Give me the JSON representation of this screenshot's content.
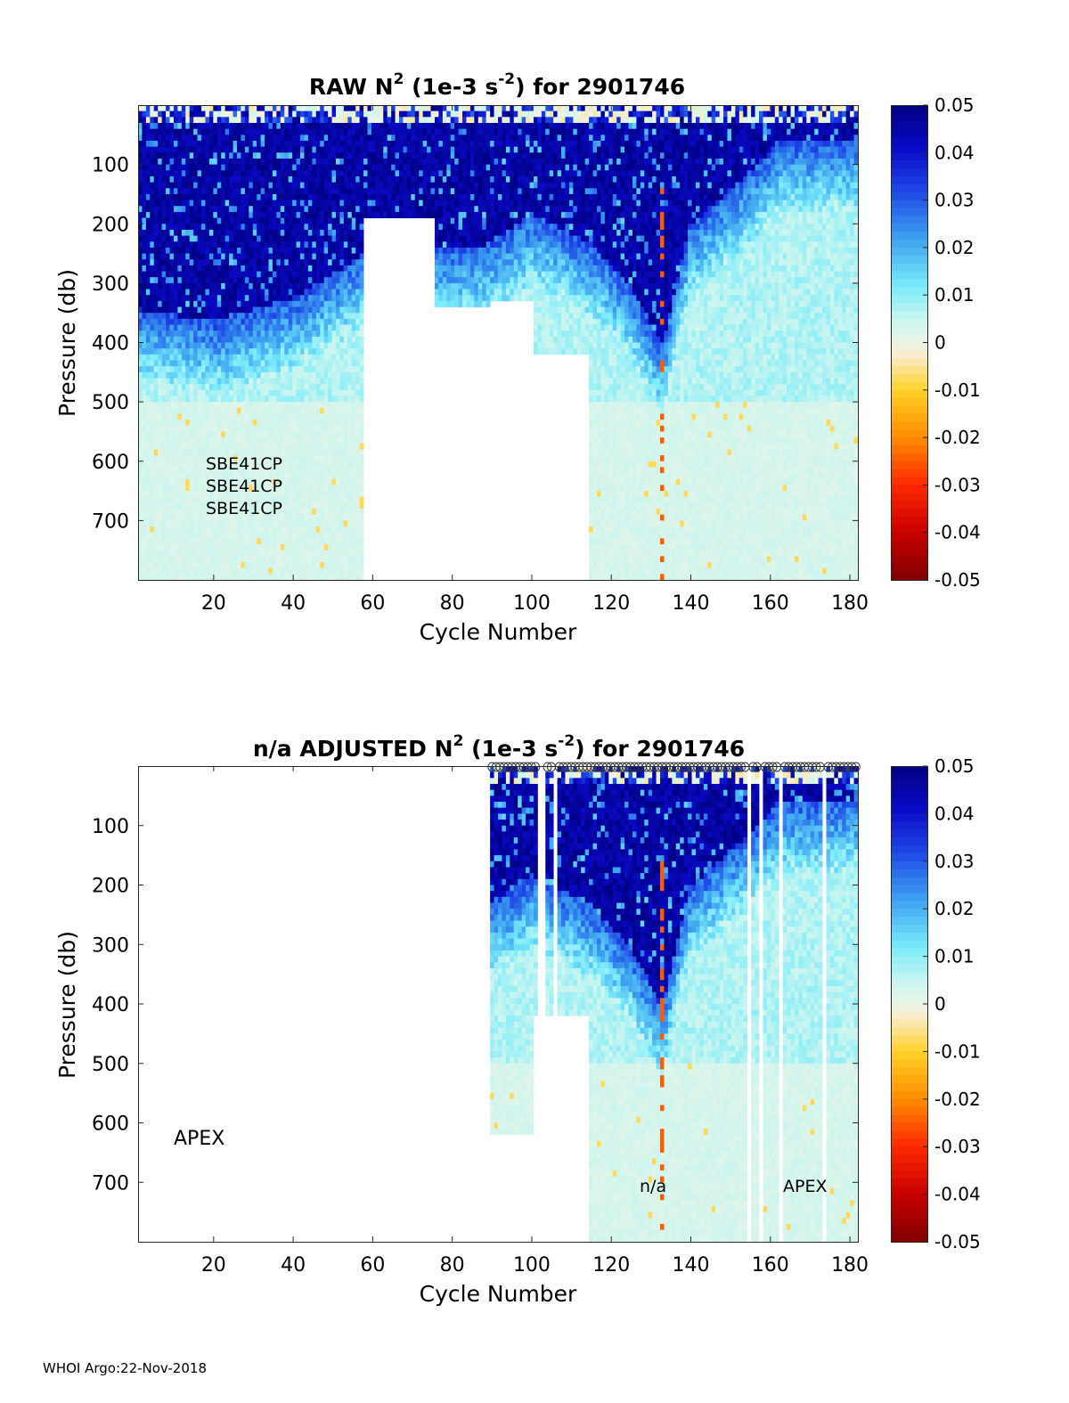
{
  "footer": "WHOI Argo:22-Nov-2018",
  "chart_data": [
    {
      "type": "heatmap",
      "title": {
        "pre": "RAW N",
        "sup": "2",
        "mid": " (1e-3 s",
        "sup2": "-2",
        "post": ") for 2901746"
      },
      "xlabel": "Cycle Number",
      "ylabel": "Pressure (db)",
      "xlim": [
        1,
        182
      ],
      "ylim": [
        0,
        800
      ],
      "y_reversed": true,
      "xticks": [
        "20",
        "40",
        "60",
        "80",
        "100",
        "120",
        "140",
        "160",
        "180"
      ],
      "yticks": [
        "100",
        "200",
        "300",
        "400",
        "500",
        "600",
        "700"
      ],
      "clim": [
        -0.05,
        0.05
      ],
      "colormap": "blue-to-red (jet-like)",
      "colorbar_ticks": [
        "0.05",
        "0.04",
        "0.03",
        "0.02",
        "0.01",
        "0",
        "-0.01",
        "-0.02",
        "-0.03",
        "-0.04",
        "-0.05"
      ],
      "annotations": [
        "SBE41CP",
        "SBE41CP",
        "SBE41CP"
      ],
      "profile_bottom_db": [
        {
          "from": 1,
          "to": 57,
          "bottom": 800
        },
        {
          "from": 58,
          "to": 75,
          "bottom": 190
        },
        {
          "from": 76,
          "to": 89,
          "bottom": 340
        },
        {
          "from": 90,
          "to": 100,
          "bottom": 330
        },
        {
          "from": 101,
          "to": 114,
          "bottom": 420
        },
        {
          "from": 115,
          "to": 182,
          "bottom": 800
        }
      ],
      "stratified_layer_bottom_db": [
        {
          "cycle": 1,
          "value": 340
        },
        {
          "cycle": 20,
          "value": 360
        },
        {
          "cycle": 40,
          "value": 320
        },
        {
          "cycle": 57,
          "value": 250
        },
        {
          "cycle": 75,
          "value": 240
        },
        {
          "cycle": 89,
          "value": 230
        },
        {
          "cycle": 100,
          "value": 180
        },
        {
          "cycle": 115,
          "value": 230
        },
        {
          "cycle": 125,
          "value": 300
        },
        {
          "cycle": 133,
          "value": 400
        },
        {
          "cycle": 140,
          "value": 200
        },
        {
          "cycle": 155,
          "value": 110
        },
        {
          "cycle": 162,
          "value": 60
        },
        {
          "cycle": 182,
          "value": 50
        }
      ]
    },
    {
      "type": "heatmap",
      "title": {
        "pre": "n/a  ADJUSTED N",
        "sup": "2",
        "mid": " (1e-3 s",
        "sup2": "-2",
        "post": ") for 2901746"
      },
      "xlabel": "Cycle Number",
      "ylabel": "Pressure (db)",
      "xlim": [
        1,
        182
      ],
      "ylim": [
        0,
        800
      ],
      "y_reversed": true,
      "xticks": [
        "20",
        "40",
        "60",
        "80",
        "100",
        "120",
        "140",
        "160",
        "180"
      ],
      "yticks": [
        "100",
        "200",
        "300",
        "400",
        "500",
        "600",
        "700"
      ],
      "clim": [
        -0.05,
        0.05
      ],
      "colormap": "blue-to-red (jet-like)",
      "colorbar_ticks": [
        "0.05",
        "0.04",
        "0.03",
        "0.02",
        "0.01",
        "0",
        "-0.01",
        "-0.02",
        "-0.03",
        "-0.04",
        "-0.05"
      ],
      "annotations": [
        "APEX",
        "n/a",
        "APEX"
      ],
      "data_starts_cycle": 90,
      "missing_cycles": [
        102,
        103,
        106,
        155,
        158,
        163,
        174
      ],
      "flag_marker": "o",
      "flag_row": "top of plot (0 db)",
      "profile_bottom_db": [
        {
          "from": 90,
          "to": 100,
          "bottom": 620
        },
        {
          "from": 101,
          "to": 114,
          "bottom": 420
        },
        {
          "from": 115,
          "to": 182,
          "bottom": 800
        }
      ]
    }
  ]
}
